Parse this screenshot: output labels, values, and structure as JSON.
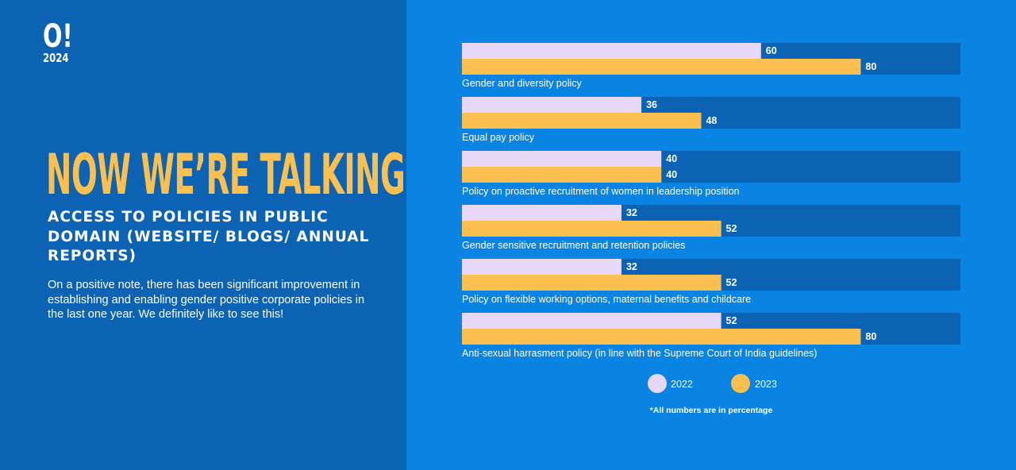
{
  "brand": {
    "mark": "O!",
    "year": "2024"
  },
  "headline": "NOW WE’RE TALKING!",
  "subhead": "ACCESS TO POLICIES IN PUBLIC DOMAIN (WEBSITE/ BLOGS/ ANNUAL REPORTS)",
  "body": "On a positive note, there has been significant improvement in establishing and enabling gender positive corporate policies in the last one year. We definitely like to see this!",
  "colors": {
    "left_bg": "#0d63b3",
    "right_bg": "#0a84e3",
    "track": "#0d63b3",
    "series_2022": "#e7d8f7",
    "series_2023": "#fbc04f",
    "headline": "#fbc04f"
  },
  "chart_data": {
    "type": "bar",
    "orientation": "horizontal",
    "categories": [
      "Gender and diversity policy",
      "Equal pay policy",
      "Policy on proactive recruitment of women in leadership position",
      "Gender sensitive recruitment and retention policies",
      "Policy on flexible working options, maternal benefits and childcare",
      "Anti-sexual harrasment policy (in line with the Supreme Court of India guidelines)"
    ],
    "series": [
      {
        "name": "2022",
        "values": [
          60,
          36,
          40,
          32,
          32,
          52
        ]
      },
      {
        "name": "2023",
        "values": [
          80,
          48,
          40,
          52,
          52,
          80
        ]
      }
    ],
    "xlim": [
      0,
      100
    ],
    "grid": false,
    "legend": "bottom",
    "footnote": "*All numbers are in percentage"
  }
}
